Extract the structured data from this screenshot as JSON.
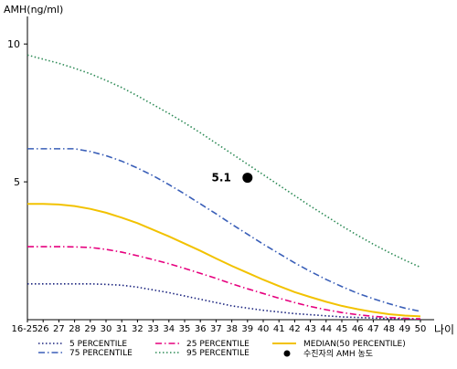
{
  "chart_data": {
    "type": "line",
    "ylabel": "AMH(ng/ml)",
    "xlabel": "나이",
    "ylim": [
      0,
      11
    ],
    "y_ticks": [
      5,
      10
    ],
    "categories": [
      "16-25",
      "26",
      "27",
      "28",
      "29",
      "30",
      "31",
      "32",
      "33",
      "34",
      "35",
      "36",
      "37",
      "38",
      "39",
      "40",
      "41",
      "42",
      "43",
      "44",
      "45",
      "46",
      "47",
      "48",
      "49",
      "50"
    ],
    "grid": false,
    "legend_position": "bottom",
    "series": [
      {
        "name": "5 PERCENTILE",
        "color": "#1a237e",
        "dash": "dot",
        "values": [
          1.3,
          1.3,
          1.3,
          1.3,
          1.3,
          1.28,
          1.25,
          1.18,
          1.08,
          0.98,
          0.86,
          0.74,
          0.62,
          0.5,
          0.42,
          0.34,
          0.28,
          0.22,
          0.18,
          0.14,
          0.1,
          0.08,
          0.06,
          0.04,
          0.03,
          0.02
        ]
      },
      {
        "name": "25 PERCENTILE",
        "color": "#e6007e",
        "dash": "dashdot",
        "values": [
          2.65,
          2.65,
          2.65,
          2.64,
          2.62,
          2.55,
          2.45,
          2.32,
          2.18,
          2.03,
          1.86,
          1.68,
          1.5,
          1.3,
          1.12,
          0.95,
          0.78,
          0.62,
          0.48,
          0.36,
          0.26,
          0.18,
          0.12,
          0.08,
          0.05,
          0.03
        ]
      },
      {
        "name": "MEDIAN(50 PERCENTILE)",
        "color": "#f2c200",
        "dash": "solid",
        "values": [
          4.2,
          4.2,
          4.18,
          4.12,
          4.02,
          3.88,
          3.7,
          3.5,
          3.26,
          3.02,
          2.76,
          2.5,
          2.22,
          1.95,
          1.7,
          1.45,
          1.22,
          1.0,
          0.82,
          0.65,
          0.5,
          0.38,
          0.28,
          0.2,
          0.15,
          0.12
        ]
      },
      {
        "name": "75 PERCENTILE",
        "color": "#3a5fb8",
        "dash": "dashdot",
        "values": [
          6.2,
          6.2,
          6.2,
          6.2,
          6.1,
          5.95,
          5.75,
          5.5,
          5.22,
          4.9,
          4.56,
          4.2,
          3.84,
          3.46,
          3.1,
          2.74,
          2.4,
          2.06,
          1.75,
          1.46,
          1.2,
          0.96,
          0.76,
          0.58,
          0.42,
          0.3
        ]
      },
      {
        "name": "95 PERCENTILE",
        "color": "#2e8b57",
        "dash": "dot",
        "values": [
          9.6,
          9.45,
          9.3,
          9.12,
          8.92,
          8.68,
          8.42,
          8.12,
          7.8,
          7.48,
          7.14,
          6.78,
          6.4,
          6.02,
          5.64,
          5.26,
          4.88,
          4.5,
          4.12,
          3.76,
          3.4,
          3.06,
          2.74,
          2.44,
          2.16,
          1.9
        ]
      }
    ],
    "point": {
      "label": "5.1",
      "x": "39",
      "y": 5.15,
      "legend": "수진자의 AMH 농도",
      "color": "#000000"
    }
  }
}
